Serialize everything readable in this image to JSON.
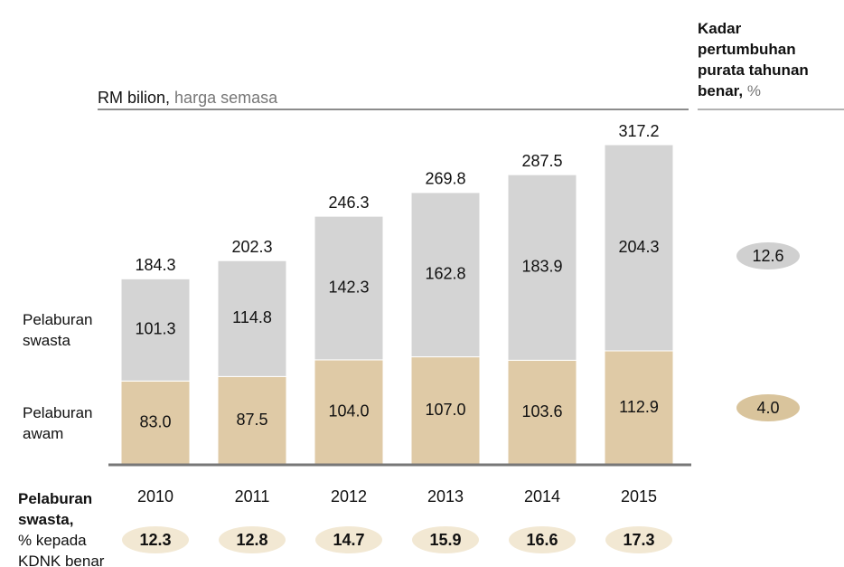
{
  "chart_data": {
    "type": "bar",
    "stacked": true,
    "unit": "RM bilion,",
    "unit_note": "harga semasa",
    "categories": [
      "2010",
      "2011",
      "2012",
      "2013",
      "2014",
      "2015"
    ],
    "series": [
      {
        "name": "Pelaburan awam",
        "color": "#dfcaa6",
        "values": [
          83.0,
          87.5,
          104.0,
          107.0,
          103.6,
          112.9
        ],
        "value_labels": [
          "83.0",
          "87.5",
          "104.0",
          "107.0",
          "103.6",
          "112.9"
        ]
      },
      {
        "name": "Pelaburan swasta",
        "color": "#d4d4d4",
        "values": [
          101.3,
          114.8,
          142.3,
          162.8,
          183.9,
          204.3
        ],
        "value_labels": [
          "101.3",
          "114.8",
          "142.3",
          "162.8",
          "183.9",
          "204.3"
        ]
      }
    ],
    "totals": [
      184.3,
      202.3,
      246.3,
      269.8,
      287.5,
      317.2
    ],
    "growth": {
      "title": "Kadar pertumbuhan purata tahunan benar,",
      "unit": "%",
      "values": [
        4.0,
        12.6
      ],
      "value_labels": [
        "4.0",
        "12.6"
      ]
    },
    "share": {
      "title": "Pelaburan swasta,",
      "subtitle": "% kepada KDNK benar",
      "values": [
        12.3,
        12.8,
        14.7,
        15.9,
        16.6,
        17.3
      ]
    }
  }
}
